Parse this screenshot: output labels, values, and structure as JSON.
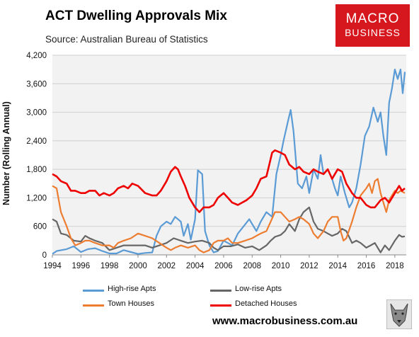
{
  "header": {
    "title": "ACT Dwelling Approvals Mix",
    "source": "Source: Australian Bureau of Statistics",
    "logo_line1": "MACRO",
    "logo_line2": "BUSINESS"
  },
  "footer": {
    "url": "www.macrobusiness.com.au"
  },
  "colors": {
    "high_rise": "#5b9bd5",
    "low_rise": "#666666",
    "town": "#ed7d31",
    "detached": "#ee0000",
    "plot_bg": "#f2f2f2",
    "logo_bg": "#d6181e"
  },
  "chart_data": {
    "type": "line",
    "title": "ACT Dwelling Approvals Mix",
    "ylabel": "Number (Rolling Annual)",
    "xlabel": "",
    "xlim": [
      1994,
      2018.8
    ],
    "ylim": [
      0,
      4200
    ],
    "yticks": [
      0,
      600,
      1200,
      1800,
      2400,
      3000,
      3600,
      4200
    ],
    "ytick_labels": [
      "0",
      "600",
      "1,200",
      "1,800",
      "2,400",
      "3,000",
      "3,600",
      "4,200"
    ],
    "xticks": [
      1994,
      1996,
      1998,
      2000,
      2002,
      2004,
      2006,
      2008,
      2010,
      2012,
      2014,
      2016,
      2018
    ],
    "xtick_labels": [
      "1994",
      "1996",
      "1998",
      "2000",
      "2002",
      "2004",
      "2006",
      "2008",
      "2010",
      "2012",
      "2014",
      "2016",
      "2018"
    ],
    "grid": "horizontal",
    "legend_position": "bottom",
    "series": [
      {
        "name": "High-rise Apts",
        "color": "#5b9bd5",
        "points": [
          [
            1994,
            20
          ],
          [
            1994.3,
            80
          ],
          [
            1995,
            120
          ],
          [
            1995.5,
            180
          ],
          [
            1996,
            60
          ],
          [
            1996.5,
            120
          ],
          [
            1997,
            140
          ],
          [
            1997.5,
            80
          ],
          [
            1998,
            30
          ],
          [
            1998.5,
            30
          ],
          [
            1999,
            100
          ],
          [
            1999.5,
            60
          ],
          [
            2000,
            20
          ],
          [
            2000.5,
            40
          ],
          [
            2001,
            50
          ],
          [
            2001.3,
            400
          ],
          [
            2001.6,
            600
          ],
          [
            2002,
            700
          ],
          [
            2002.3,
            650
          ],
          [
            2002.6,
            800
          ],
          [
            2003,
            700
          ],
          [
            2003.2,
            400
          ],
          [
            2003.5,
            650
          ],
          [
            2003.7,
            320
          ],
          [
            2004,
            750
          ],
          [
            2004.2,
            1780
          ],
          [
            2004.5,
            1700
          ],
          [
            2004.7,
            500
          ],
          [
            2005,
            200
          ],
          [
            2005.3,
            50
          ],
          [
            2005.6,
            80
          ],
          [
            2006,
            300
          ],
          [
            2006.3,
            250
          ],
          [
            2006.6,
            200
          ],
          [
            2007,
            450
          ],
          [
            2007.4,
            600
          ],
          [
            2007.8,
            750
          ],
          [
            2008,
            650
          ],
          [
            2008.3,
            500
          ],
          [
            2008.6,
            700
          ],
          [
            2009,
            900
          ],
          [
            2009.4,
            800
          ],
          [
            2009.7,
            1700
          ],
          [
            2010,
            2100
          ],
          [
            2010.2,
            2400
          ],
          [
            2010.5,
            2800
          ],
          [
            2010.7,
            3050
          ],
          [
            2010.9,
            2600
          ],
          [
            2011.2,
            1500
          ],
          [
            2011.5,
            1400
          ],
          [
            2011.8,
            1650
          ],
          [
            2012,
            1300
          ],
          [
            2012.3,
            1800
          ],
          [
            2012.6,
            1600
          ],
          [
            2012.8,
            2100
          ],
          [
            2013,
            1700
          ],
          [
            2013.3,
            1800
          ],
          [
            2013.6,
            1600
          ],
          [
            2013.8,
            1400
          ],
          [
            2014,
            1250
          ],
          [
            2014.2,
            1650
          ],
          [
            2014.5,
            1300
          ],
          [
            2014.8,
            1000
          ],
          [
            2015,
            1100
          ],
          [
            2015.3,
            1400
          ],
          [
            2015.6,
            1900
          ],
          [
            2015.9,
            2500
          ],
          [
            2016.2,
            2700
          ],
          [
            2016.5,
            3100
          ],
          [
            2016.8,
            2800
          ],
          [
            2017,
            3000
          ],
          [
            2017.2,
            2500
          ],
          [
            2017.4,
            2100
          ],
          [
            2017.6,
            3200
          ],
          [
            2017.8,
            3500
          ],
          [
            2018,
            3900
          ],
          [
            2018.2,
            3700
          ],
          [
            2018.4,
            3900
          ],
          [
            2018.55,
            3400
          ],
          [
            2018.7,
            3850
          ]
        ]
      },
      {
        "name": "Low-rise Apts",
        "color": "#666666",
        "points": [
          [
            1994,
            750
          ],
          [
            1994.3,
            700
          ],
          [
            1994.6,
            450
          ],
          [
            1995,
            420
          ],
          [
            1995.5,
            300
          ],
          [
            1996,
            280
          ],
          [
            1996.3,
            400
          ],
          [
            1996.6,
            350
          ],
          [
            1997,
            300
          ],
          [
            1997.5,
            250
          ],
          [
            1998,
            100
          ],
          [
            1998.5,
            150
          ],
          [
            1999,
            200
          ],
          [
            1999.5,
            200
          ],
          [
            2000,
            200
          ],
          [
            2000.5,
            200
          ],
          [
            2001,
            150
          ],
          [
            2001.5,
            200
          ],
          [
            2002,
            250
          ],
          [
            2002.5,
            350
          ],
          [
            2003,
            300
          ],
          [
            2003.5,
            250
          ],
          [
            2004,
            280
          ],
          [
            2004.5,
            300
          ],
          [
            2005,
            250
          ],
          [
            2005.3,
            150
          ],
          [
            2005.6,
            100
          ],
          [
            2006,
            180
          ],
          [
            2006.5,
            180
          ],
          [
            2007,
            220
          ],
          [
            2007.5,
            150
          ],
          [
            2008,
            180
          ],
          [
            2008.5,
            100
          ],
          [
            2009,
            200
          ],
          [
            2009.3,
            300
          ],
          [
            2009.6,
            380
          ],
          [
            2010,
            420
          ],
          [
            2010.3,
            500
          ],
          [
            2010.6,
            650
          ],
          [
            2011,
            500
          ],
          [
            2011.3,
            750
          ],
          [
            2011.6,
            900
          ],
          [
            2012,
            1000
          ],
          [
            2012.3,
            700
          ],
          [
            2012.6,
            550
          ],
          [
            2013,
            500
          ],
          [
            2013.3,
            450
          ],
          [
            2013.6,
            400
          ],
          [
            2014,
            450
          ],
          [
            2014.3,
            550
          ],
          [
            2014.6,
            500
          ],
          [
            2015,
            250
          ],
          [
            2015.3,
            300
          ],
          [
            2015.6,
            250
          ],
          [
            2016,
            150
          ],
          [
            2016.3,
            200
          ],
          [
            2016.6,
            250
          ],
          [
            2017,
            50
          ],
          [
            2017.3,
            200
          ],
          [
            2017.6,
            100
          ],
          [
            2018,
            300
          ],
          [
            2018.3,
            420
          ],
          [
            2018.5,
            380
          ],
          [
            2018.7,
            390
          ]
        ]
      },
      {
        "name": "Town Houses",
        "color": "#ed7d31",
        "points": [
          [
            1994,
            1450
          ],
          [
            1994.3,
            1400
          ],
          [
            1994.6,
            900
          ],
          [
            1995,
            600
          ],
          [
            1995.3,
            350
          ],
          [
            1995.6,
            200
          ],
          [
            1996,
            250
          ],
          [
            1996.3,
            300
          ],
          [
            1996.6,
            300
          ],
          [
            1997,
            250
          ],
          [
            1997.5,
            200
          ],
          [
            1998,
            200
          ],
          [
            1998.3,
            150
          ],
          [
            1998.6,
            250
          ],
          [
            1999,
            300
          ],
          [
            1999.5,
            350
          ],
          [
            2000,
            450
          ],
          [
            2000.5,
            400
          ],
          [
            2001,
            350
          ],
          [
            2001.5,
            250
          ],
          [
            2002,
            150
          ],
          [
            2002.3,
            100
          ],
          [
            2002.6,
            150
          ],
          [
            2003,
            200
          ],
          [
            2003.5,
            150
          ],
          [
            2004,
            200
          ],
          [
            2004.3,
            100
          ],
          [
            2004.6,
            50
          ],
          [
            2005,
            100
          ],
          [
            2005.3,
            250
          ],
          [
            2005.6,
            300
          ],
          [
            2006,
            300
          ],
          [
            2006.3,
            350
          ],
          [
            2006.6,
            250
          ],
          [
            2007,
            250
          ],
          [
            2007.5,
            300
          ],
          [
            2008,
            350
          ],
          [
            2008.3,
            400
          ],
          [
            2008.6,
            450
          ],
          [
            2009,
            500
          ],
          [
            2009.3,
            700
          ],
          [
            2009.6,
            900
          ],
          [
            2010,
            900
          ],
          [
            2010.3,
            800
          ],
          [
            2010.6,
            700
          ],
          [
            2011,
            750
          ],
          [
            2011.3,
            800
          ],
          [
            2011.6,
            750
          ],
          [
            2012,
            650
          ],
          [
            2012.3,
            450
          ],
          [
            2012.6,
            350
          ],
          [
            2013,
            500
          ],
          [
            2013.3,
            700
          ],
          [
            2013.6,
            800
          ],
          [
            2014,
            800
          ],
          [
            2014.2,
            500
          ],
          [
            2014.4,
            300
          ],
          [
            2014.6,
            350
          ],
          [
            2015,
            700
          ],
          [
            2015.3,
            1000
          ],
          [
            2015.6,
            1250
          ],
          [
            2016,
            1400
          ],
          [
            2016.2,
            1500
          ],
          [
            2016.4,
            1300
          ],
          [
            2016.6,
            1550
          ],
          [
            2016.8,
            1600
          ],
          [
            2017,
            1300
          ],
          [
            2017.2,
            1100
          ],
          [
            2017.4,
            900
          ],
          [
            2017.6,
            1150
          ],
          [
            2017.8,
            1250
          ],
          [
            2018,
            1350
          ],
          [
            2018.2,
            1300
          ],
          [
            2018.4,
            1350
          ],
          [
            2018.7,
            1300
          ]
        ]
      },
      {
        "name": "Detached Houses",
        "color": "#ee0000",
        "points": [
          [
            1994,
            1700
          ],
          [
            1994.3,
            1650
          ],
          [
            1994.6,
            1550
          ],
          [
            1995,
            1500
          ],
          [
            1995.3,
            1350
          ],
          [
            1995.6,
            1350
          ],
          [
            1996,
            1300
          ],
          [
            1996.3,
            1300
          ],
          [
            1996.6,
            1350
          ],
          [
            1997,
            1350
          ],
          [
            1997.3,
            1250
          ],
          [
            1997.6,
            1300
          ],
          [
            1998,
            1250
          ],
          [
            1998.3,
            1300
          ],
          [
            1998.6,
            1400
          ],
          [
            1999,
            1450
          ],
          [
            1999.3,
            1400
          ],
          [
            1999.6,
            1500
          ],
          [
            2000,
            1450
          ],
          [
            2000.5,
            1300
          ],
          [
            2001,
            1250
          ],
          [
            2001.3,
            1250
          ],
          [
            2001.6,
            1350
          ],
          [
            2002,
            1550
          ],
          [
            2002.3,
            1750
          ],
          [
            2002.6,
            1850
          ],
          [
            2002.8,
            1800
          ],
          [
            2003,
            1650
          ],
          [
            2003.3,
            1450
          ],
          [
            2003.6,
            1200
          ],
          [
            2004,
            1000
          ],
          [
            2004.3,
            900
          ],
          [
            2004.6,
            1000
          ],
          [
            2005,
            1000
          ],
          [
            2005.3,
            1050
          ],
          [
            2005.6,
            1200
          ],
          [
            2006,
            1300
          ],
          [
            2006.3,
            1200
          ],
          [
            2006.6,
            1100
          ],
          [
            2007,
            1050
          ],
          [
            2007.3,
            1100
          ],
          [
            2007.6,
            1150
          ],
          [
            2008,
            1250
          ],
          [
            2008.3,
            1400
          ],
          [
            2008.6,
            1600
          ],
          [
            2009,
            1650
          ],
          [
            2009.2,
            1900
          ],
          [
            2009.4,
            2150
          ],
          [
            2009.6,
            2200
          ],
          [
            2010,
            2150
          ],
          [
            2010.3,
            2100
          ],
          [
            2010.6,
            1900
          ],
          [
            2011,
            1800
          ],
          [
            2011.3,
            1850
          ],
          [
            2011.6,
            1750
          ],
          [
            2012,
            1700
          ],
          [
            2012.3,
            1800
          ],
          [
            2012.6,
            1750
          ],
          [
            2013,
            1700
          ],
          [
            2013.3,
            1800
          ],
          [
            2013.6,
            1600
          ],
          [
            2014,
            1800
          ],
          [
            2014.3,
            1750
          ],
          [
            2014.6,
            1500
          ],
          [
            2015,
            1300
          ],
          [
            2015.3,
            1200
          ],
          [
            2015.6,
            1200
          ],
          [
            2016,
            1050
          ],
          [
            2016.3,
            1000
          ],
          [
            2016.6,
            1000
          ],
          [
            2017,
            1150
          ],
          [
            2017.3,
            1200
          ],
          [
            2017.6,
            1100
          ],
          [
            2018,
            1300
          ],
          [
            2018.3,
            1450
          ],
          [
            2018.5,
            1350
          ],
          [
            2018.7,
            1400
          ]
        ]
      }
    ]
  }
}
